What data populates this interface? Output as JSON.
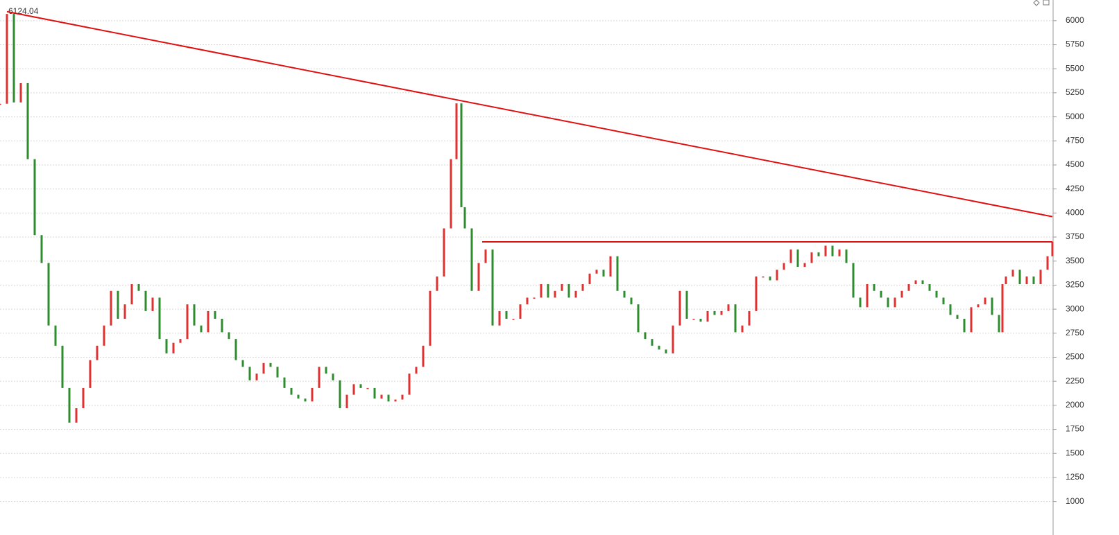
{
  "chart_data": {
    "type": "price",
    "annotation": "6124.04",
    "up_color": "#e03030",
    "down_color": "#2e8b2e",
    "x": [
      0,
      10,
      20,
      30,
      40,
      50,
      60,
      70,
      80,
      90,
      100,
      110,
      120,
      130,
      140,
      150,
      160,
      170,
      180,
      190,
      200,
      210,
      220,
      230,
      240,
      250,
      260,
      270,
      280,
      290,
      300,
      310,
      320,
      330,
      340,
      350,
      360,
      370,
      380,
      390,
      400,
      410,
      420,
      430,
      440,
      450,
      460,
      470,
      480,
      490,
      500,
      510,
      520,
      530,
      540,
      550,
      560,
      570,
      580,
      590,
      600,
      610,
      620,
      630,
      640,
      650,
      658,
      665,
      670,
      680,
      690,
      700,
      710,
      720,
      730,
      740,
      750,
      760,
      770,
      780,
      790,
      800,
      810,
      820,
      830,
      840,
      850,
      860,
      870,
      880,
      890,
      900,
      910,
      920,
      930,
      940,
      950,
      960,
      970,
      980,
      990,
      1000,
      1010,
      1020,
      1030,
      1040,
      1050,
      1060,
      1070,
      1080,
      1090,
      1100,
      1110,
      1120,
      1130,
      1140,
      1150,
      1160,
      1170,
      1180,
      1190,
      1200,
      1210,
      1220,
      1230,
      1240,
      1250,
      1260,
      1270,
      1280,
      1290,
      1300,
      1310,
      1320,
      1330,
      1340,
      1350,
      1360,
      1370,
      1380,
      1390,
      1400,
      1410,
      1420,
      1430,
      1440,
      1445,
      1450,
      1460,
      1470,
      1480,
      1490,
      1500,
      1510,
      1517
    ],
    "values": [
      5136,
      6070,
      5150,
      5350,
      4560,
      3770,
      3480,
      2830,
      2620,
      2180,
      1820,
      1970,
      2180,
      2470,
      2620,
      2830,
      3190,
      2900,
      3050,
      3260,
      3190,
      2980,
      3120,
      2690,
      2540,
      2650,
      2690,
      3050,
      2830,
      2760,
      2980,
      2900,
      2760,
      2690,
      2470,
      2400,
      2260,
      2330,
      2440,
      2400,
      2290,
      2180,
      2110,
      2070,
      2040,
      2180,
      2400,
      2330,
      2260,
      1970,
      2110,
      2220,
      2180,
      2180,
      2070,
      2110,
      2040,
      2060,
      2110,
      2330,
      2400,
      2620,
      3190,
      3340,
      3840,
      4560,
      5140,
      4060,
      3840,
      3190,
      3480,
      3620,
      2830,
      2980,
      2900,
      2900,
      3050,
      3120,
      3120,
      3260,
      3120,
      3190,
      3260,
      3120,
      3190,
      3260,
      3370,
      3410,
      3340,
      3550,
      3190,
      3120,
      3050,
      2760,
      2690,
      2620,
      2580,
      2540,
      2830,
      3190,
      2900,
      2900,
      2870,
      2980,
      2940,
      2980,
      3050,
      2760,
      2830,
      2980,
      3340,
      3340,
      3300,
      3410,
      3480,
      3620,
      3440,
      3480,
      3590,
      3550,
      3660,
      3550,
      3620,
      3480,
      3120,
      3020,
      3260,
      3190,
      3120,
      3020,
      3120,
      3190,
      3260,
      3300,
      3260,
      3190,
      3120,
      3050,
      2940,
      2900,
      2760,
      3020,
      3050,
      3120,
      2940,
      2760,
      3260,
      3340,
      3410,
      3260,
      3340,
      3260,
      3410,
      3550,
      3700
    ],
    "lines": [
      {
        "x": [
          10,
          1517
        ],
        "values": [
          6094,
          3962
        ],
        "color": "#e01010"
      },
      {
        "x": [
          695,
          1517
        ],
        "values": [
          3700,
          3700
        ],
        "color": "#e01010"
      }
    ],
    "xlim": [
      0,
      1517
    ],
    "ylim": [
      810,
      6215
    ],
    "yticks": [
      1000,
      1250,
      1500,
      1750,
      2000,
      2250,
      2500,
      2750,
      3000,
      3250,
      3500,
      3750,
      4000,
      4250,
      4500,
      4750,
      5000,
      5250,
      5500,
      5750,
      6000
    ],
    "grid": true
  }
}
